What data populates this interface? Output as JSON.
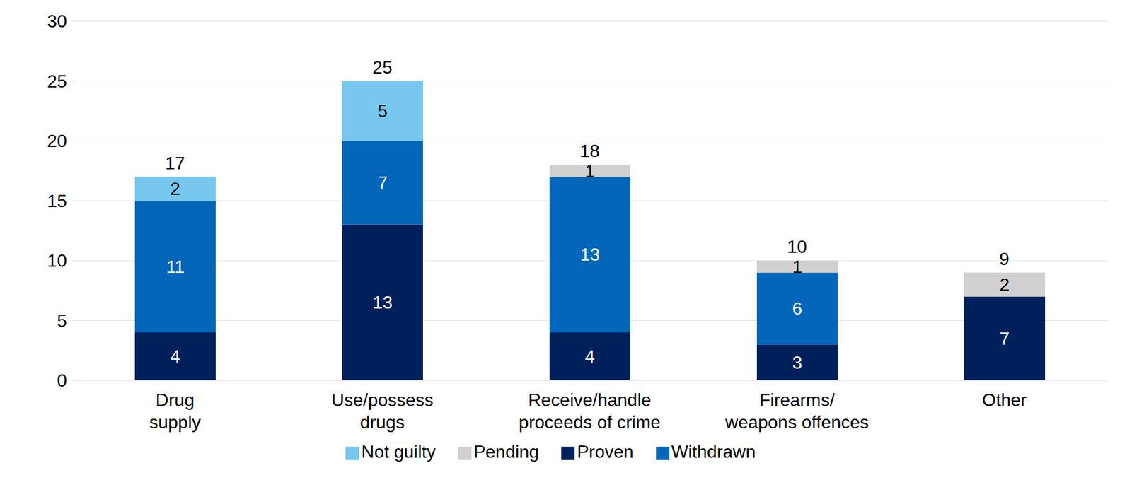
{
  "chart_data": {
    "type": "bar",
    "stacked": true,
    "data_labels": true,
    "grid": true,
    "legend": "bottom",
    "categories": [
      "Drug supply",
      "Use/possess drugs",
      "Receive/handle proceeds of crime",
      "Firearms/ weapons offences",
      "Other"
    ],
    "series": [
      {
        "name": "Proven",
        "color": "#00205b",
        "values": [
          4,
          13,
          4,
          3,
          7
        ]
      },
      {
        "name": "Withdrawn",
        "color": "#0366b8",
        "values": [
          11,
          7,
          13,
          6,
          null
        ]
      },
      {
        "name": "Not guilty",
        "color": "#77c7ef",
        "values": [
          2,
          5,
          null,
          null,
          null
        ]
      },
      {
        "name": "Pending",
        "color": "#d0d0d0",
        "values": [
          null,
          null,
          1,
          1,
          2
        ]
      }
    ],
    "totals": [
      17,
      25,
      18,
      10,
      9
    ],
    "ylim": [
      0,
      30
    ],
    "yticks": [
      0,
      5,
      10,
      15,
      20,
      25,
      30
    ]
  }
}
